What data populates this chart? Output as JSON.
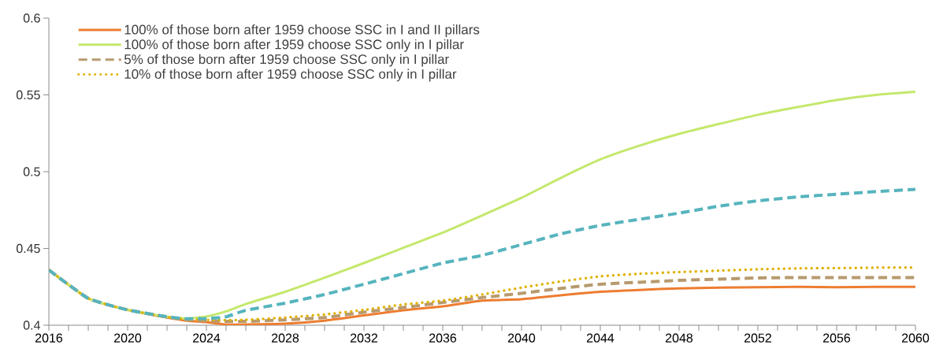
{
  "chart_data": {
    "type": "line",
    "x": [
      2016,
      2018,
      2020,
      2022,
      2023,
      2024,
      2025,
      2026,
      2028,
      2030,
      2032,
      2034,
      2036,
      2038,
      2040,
      2042,
      2044,
      2046,
      2048,
      2050,
      2052,
      2054,
      2056,
      2058,
      2060
    ],
    "series": [
      {
        "name": "100% of those born after 1959 choose SSC in I and II pillars",
        "color": "#ed7d31",
        "line_style": "solid",
        "values": [
          0.436,
          0.4175,
          0.41,
          0.405,
          0.403,
          0.402,
          0.4005,
          0.4005,
          0.401,
          0.403,
          0.4064,
          0.4097,
          0.4123,
          0.416,
          0.4169,
          0.4195,
          0.4218,
          0.423,
          0.424,
          0.4245,
          0.4247,
          0.425,
          0.4247,
          0.425,
          0.425
        ]
      },
      {
        "name": "100% of those born after 1959 choose SSC only in I pillar",
        "color": "#c4e86c",
        "line_style": "solid",
        "values": [
          0.436,
          0.4175,
          0.41,
          0.4055,
          0.4044,
          0.4056,
          0.409,
          0.4138,
          0.4218,
          0.431,
          0.4405,
          0.4504,
          0.4603,
          0.4715,
          0.483,
          0.496,
          0.508,
          0.517,
          0.5246,
          0.531,
          0.537,
          0.542,
          0.5467,
          0.55,
          0.552
        ]
      },
      {
        "name": "5% of those born after 1959 choose SSC only in I pillar",
        "color": "#b79a6e",
        "line_style": "dashed",
        "values": [
          0.436,
          0.4175,
          0.41,
          0.4055,
          0.4035,
          0.403,
          0.4025,
          0.4025,
          0.4035,
          0.405,
          0.4085,
          0.4115,
          0.4148,
          0.418,
          0.4208,
          0.424,
          0.4267,
          0.428,
          0.4292,
          0.43,
          0.4308,
          0.431,
          0.431,
          0.431,
          0.431
        ]
      },
      {
        "name": "10% of those born after 1959 choose SSC only in I pillar",
        "color": "#e0b000",
        "line_style": "dotted",
        "values": [
          0.436,
          0.4175,
          0.41,
          0.4055,
          0.4038,
          0.4035,
          0.4033,
          0.4035,
          0.405,
          0.407,
          0.41,
          0.4135,
          0.416,
          0.42,
          0.4245,
          0.4285,
          0.4318,
          0.4335,
          0.4346,
          0.4355,
          0.4364,
          0.437,
          0.4372,
          0.4375,
          0.4375
        ]
      },
      {
        "color": "#56b4be",
        "line_style": "dashed",
        "values": [
          0.436,
          0.4175,
          0.41,
          0.4055,
          0.4042,
          0.4044,
          0.4055,
          0.4097,
          0.4144,
          0.42,
          0.4267,
          0.4336,
          0.4405,
          0.4455,
          0.4525,
          0.4595,
          0.465,
          0.469,
          0.473,
          0.4775,
          0.481,
          0.4835,
          0.4853,
          0.487,
          0.4885
        ]
      }
    ],
    "xlim": [
      2016,
      2060
    ],
    "xticks": [
      2016,
      {
        "value": 2017,
        "label": null
      },
      {
        "value": 2018,
        "label": null
      },
      {
        "value": 2019,
        "label": null
      },
      2020,
      {
        "value": 2021,
        "label": null
      },
      {
        "value": 2022,
        "label": null
      },
      {
        "value": 2023,
        "label": null
      },
      2024,
      {
        "value": 2025,
        "label": null
      },
      {
        "value": 2026,
        "label": null
      },
      {
        "value": 2027,
        "label": null
      },
      2028,
      {
        "value": 2029,
        "label": null
      },
      {
        "value": 2030,
        "label": null
      },
      {
        "value": 2031,
        "label": null
      },
      2032,
      {
        "value": 2033,
        "label": null
      },
      {
        "value": 2034,
        "label": null
      },
      {
        "value": 2035,
        "label": null
      },
      2036,
      {
        "value": 2037,
        "label": null
      },
      {
        "value": 2038,
        "label": null
      },
      {
        "value": 2039,
        "label": null
      },
      2040,
      {
        "value": 2041,
        "label": null
      },
      {
        "value": 2042,
        "label": null
      },
      {
        "value": 2043,
        "label": null
      },
      2044,
      {
        "value": 2045,
        "label": null
      },
      {
        "value": 2046,
        "label": null
      },
      {
        "value": 2047,
        "label": null
      },
      2048,
      {
        "value": 2049,
        "label": null
      },
      {
        "value": 2050,
        "label": null
      },
      {
        "value": 2051,
        "label": null
      },
      2052,
      {
        "value": 2053,
        "label": null
      },
      {
        "value": 2054,
        "label": null
      },
      {
        "value": 2055,
        "label": null
      },
      2056,
      {
        "value": 2057,
        "label": null
      },
      {
        "value": 2058,
        "label": null
      },
      {
        "value": 2059,
        "label": null
      },
      2060
    ],
    "ylim": [
      0.4,
      0.6
    ],
    "yticks": [
      0.4,
      0.45,
      0.5,
      0.55,
      0.6
    ],
    "grid": false,
    "legend": "top left"
  }
}
